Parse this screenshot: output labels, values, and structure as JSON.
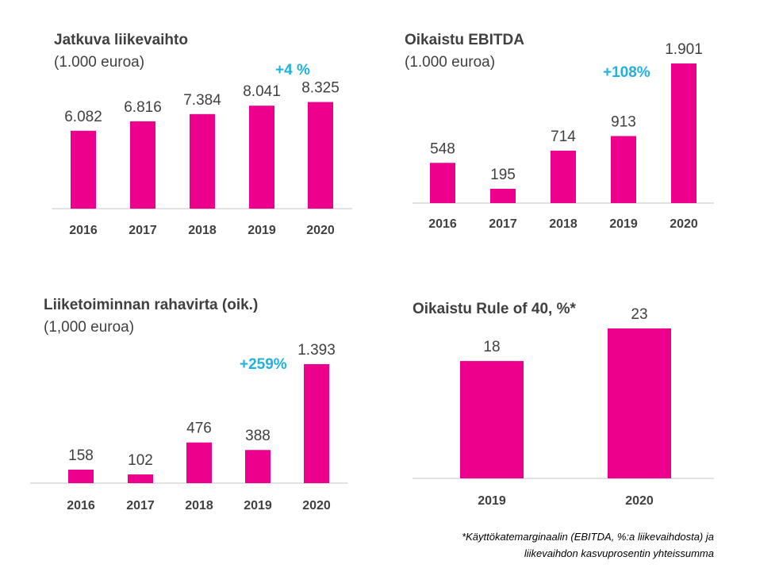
{
  "colors": {
    "bar": "#ec008c",
    "growth": "#1fb2de",
    "text": "#404040",
    "axis": "#d9d9d9"
  },
  "chart_data": [
    {
      "type": "bar",
      "title": "Jatkuva liikevaihto",
      "subtitle": "(1.000 euroa)",
      "growth_label": "+4  %",
      "categories": [
        "2016",
        "2017",
        "2018",
        "2019",
        "2020"
      ],
      "values": [
        6082,
        6816,
        7384,
        8041,
        8325
      ],
      "value_labels": [
        "6.082",
        "6.816",
        "7.384",
        "8.041",
        "8.325"
      ],
      "ylim": [
        0,
        14000
      ]
    },
    {
      "type": "bar",
      "title": "Oikaistu EBITDA",
      "subtitle": "(1.000 euroa)",
      "growth_label": "+108%",
      "categories": [
        "2016",
        "2017",
        "2018",
        "2019",
        "2020"
      ],
      "values": [
        548,
        195,
        714,
        913,
        1901
      ],
      "value_labels": [
        "548",
        "195",
        "714",
        "913",
        "1.901"
      ],
      "ylim": [
        0,
        1901
      ]
    },
    {
      "type": "bar",
      "title": "Liiketoiminnan rahavirta (oik.)",
      "subtitle": "(1,000 euroa)",
      "growth_label": "+259%",
      "categories": [
        "2016",
        "2017",
        "2018",
        "2019",
        "2020"
      ],
      "values": [
        158,
        102,
        476,
        388,
        1393
      ],
      "value_labels": [
        "158",
        "102",
        "476",
        "388",
        "1.393"
      ],
      "ylim": [
        0,
        1393
      ]
    },
    {
      "type": "bar",
      "title": "Oikaistu Rule of 40, %*",
      "subtitle": "",
      "growth_label": "",
      "categories": [
        "2019",
        "2020"
      ],
      "values": [
        18,
        23
      ],
      "value_labels": [
        "18",
        "23"
      ],
      "ylim": [
        0,
        23
      ]
    }
  ],
  "footnote": {
    "line1": "*Käyttökatemarginaalin (EBITDA, %:a liikevaihdosta) ja",
    "line2": "liikevaihdon kasvuprosentin yhteissumma"
  }
}
